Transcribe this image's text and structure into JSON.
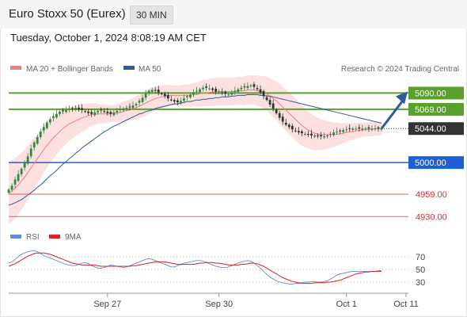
{
  "header": {
    "title": "Euro Stoxx 50 (Eurex)",
    "interval": "30 MIN",
    "datetime": "Tuesday, October 1, 2024 8:08:19 AM CET"
  },
  "legend": {
    "ma20_label": "MA 20 + Bollinger Bands",
    "ma50_label": "MA 50",
    "copyright": "Research © 2024 Trading Central",
    "rsi_label": "RSI",
    "rsi9_label": "9MA"
  },
  "colors": {
    "ma20": "#f08080",
    "ma50": "#2f5a9e",
    "bollinger_fill": "#fde0e0",
    "green_level": "#5aa02c",
    "blue_level": "#1f5fd6",
    "red_level": "#e06060",
    "candle_up": "#2d8a3e",
    "candle_down": "#333333",
    "rsi_line": "#6688dd",
    "rsi_ma": "#dd2222",
    "arrow": "#2f5a9e"
  },
  "chart_data": {
    "type": "candlestick",
    "price_range": [
      4918,
      5112
    ],
    "levels": [
      {
        "value": 5090.0,
        "label": "5090.00",
        "style": "green"
      },
      {
        "value": 5069.0,
        "label": "5069.00",
        "style": "green"
      },
      {
        "value": 5044.0,
        "label": "5044.00",
        "style": "current"
      },
      {
        "value": 5000.0,
        "label": "5000.00",
        "style": "blue"
      },
      {
        "value": 4959.0,
        "label": "4959.00",
        "style": "red"
      },
      {
        "value": 4930.0,
        "label": "4930.00",
        "style": "red"
      }
    ],
    "x_labels": [
      "Sep 27",
      "Sep 30",
      "Oct 1",
      "Oct 11"
    ],
    "x_label_index": [
      31,
      66,
      106,
      118
    ],
    "bar_count": 118,
    "closes": [
      4965,
      4970,
      4978,
      4985,
      4992,
      5000,
      5008,
      5018,
      5026,
      5033,
      5040,
      5046,
      5052,
      5056,
      5060,
      5063,
      5066,
      5067,
      5068,
      5069,
      5070,
      5071,
      5069,
      5068,
      5066,
      5064,
      5063,
      5065,
      5067,
      5068,
      5066,
      5064,
      5063,
      5065,
      5067,
      5069,
      5070,
      5071,
      5072,
      5074,
      5076,
      5080,
      5084,
      5089,
      5093,
      5094,
      5093,
      5091,
      5089,
      5086,
      5083,
      5081,
      5079,
      5078,
      5080,
      5083,
      5086,
      5088,
      5091,
      5093,
      5095,
      5097,
      5097,
      5096,
      5094,
      5092,
      5091,
      5090,
      5089,
      5088,
      5090,
      5093,
      5095,
      5097,
      5098,
      5099,
      5100,
      5098,
      5095,
      5091,
      5086,
      5081,
      5075,
      5070,
      5064,
      5058,
      5053,
      5049,
      5046,
      5043,
      5041,
      5039,
      5038,
      5037,
      5036,
      5035,
      5035,
      5034,
      5034,
      5034,
      5035,
      5037,
      5039,
      5040,
      5041,
      5042,
      5043,
      5044,
      5044,
      5044,
      5044,
      5044,
      5044,
      5044,
      5044,
      5044,
      5044,
      5044
    ],
    "ma20": [
      4960,
      4963,
      4967,
      4971,
      4976,
      4981,
      4987,
      4993,
      4999,
      5005,
      5011,
      5017,
      5022,
      5027,
      5032,
      5036,
      5040,
      5044,
      5047,
      5050,
      5052,
      5054,
      5056,
      5058,
      5059,
      5061,
      5062,
      5063,
      5063,
      5063,
      5063,
      5063,
      5063,
      5064,
      5064,
      5065,
      5066,
      5067,
      5068,
      5069,
      5071,
      5073,
      5075,
      5077,
      5079,
      5081,
      5083,
      5084,
      5085,
      5086,
      5087,
      5087,
      5087,
      5087,
      5087,
      5087,
      5087,
      5087,
      5088,
      5088,
      5089,
      5090,
      5090,
      5091,
      5091,
      5092,
      5092,
      5092,
      5092,
      5092,
      5092,
      5092,
      5093,
      5093,
      5093,
      5094,
      5094,
      5094,
      5093,
      5092,
      5091,
      5089,
      5086,
      5083,
      5080,
      5076,
      5072,
      5068,
      5064,
      5060,
      5056,
      5052,
      5048,
      5045,
      5042,
      5040,
      5038,
      5037,
      5036,
      5036,
      5036,
      5036,
      5036,
      5037,
      5037,
      5038,
      5039,
      5040,
      5040,
      5041,
      5042,
      5042,
      5043,
      5043,
      5043,
      5044,
      5044,
      5044
    ],
    "ma50": [
      4945,
      4946,
      4948,
      4950,
      4952,
      4955,
      4958,
      4961,
      4964,
      4968,
      4971,
      4975,
      4979,
      4983,
      4986,
      4990,
      4994,
      4998,
      5001,
      5005,
      5008,
      5012,
      5015,
      5019,
      5022,
      5025,
      5028,
      5031,
      5034,
      5037,
      5040,
      5042,
      5045,
      5047,
      5049,
      5051,
      5053,
      5055,
      5057,
      5059,
      5061,
      5063,
      5064,
      5066,
      5067,
      5068,
      5070,
      5071,
      5072,
      5073,
      5074,
      5075,
      5076,
      5076,
      5077,
      5078,
      5079,
      5079,
      5080,
      5081,
      5081,
      5082,
      5082,
      5083,
      5083,
      5084,
      5084,
      5085,
      5085,
      5085,
      5086,
      5086,
      5087,
      5087,
      5087,
      5088,
      5088,
      5088,
      5088,
      5087,
      5087,
      5086,
      5086,
      5085,
      5084,
      5083,
      5082,
      5081,
      5080,
      5079,
      5078,
      5077,
      5076,
      5075,
      5074,
      5073,
      5072,
      5071,
      5070,
      5069,
      5068,
      5067,
      5066,
      5065,
      5064,
      5063,
      5062,
      5061,
      5060,
      5059,
      5058,
      5057,
      5056,
      5055,
      5054,
      5053,
      5052,
      5051
    ],
    "bollinger_width": [
      40,
      40,
      39,
      38,
      37,
      36,
      35,
      34,
      33,
      32,
      31,
      30,
      29,
      28,
      27,
      26,
      25,
      24,
      23,
      22,
      21,
      20,
      19,
      18,
      17,
      16,
      15,
      14,
      13,
      12,
      12,
      11,
      11,
      11,
      12,
      12,
      13,
      13,
      14,
      14,
      15,
      15,
      16,
      16,
      16,
      16,
      16,
      15,
      15,
      14,
      14,
      13,
      13,
      13,
      13,
      14,
      14,
      15,
      15,
      16,
      16,
      17,
      17,
      18,
      18,
      18,
      18,
      18,
      18,
      18,
      18,
      18,
      18,
      18,
      19,
      19,
      19,
      19,
      20,
      20,
      21,
      22,
      23,
      24,
      25,
      26,
      26,
      27,
      27,
      27,
      27,
      27,
      26,
      25,
      24,
      23,
      22,
      21,
      20,
      19,
      18,
      17,
      16,
      15,
      14,
      13,
      12,
      11,
      11,
      10,
      10,
      9,
      9,
      9,
      9,
      9,
      9,
      9
    ],
    "rsi": {
      "levels": [
        70,
        50,
        30
      ],
      "range": [
        15,
        85
      ],
      "values": [
        60,
        62,
        66,
        70,
        74,
        76,
        78,
        79,
        80,
        78,
        75,
        72,
        70,
        68,
        66,
        64,
        62,
        60,
        58,
        57,
        56,
        56,
        58,
        60,
        61,
        59,
        56,
        54,
        52,
        52,
        53,
        55,
        57,
        56,
        55,
        54,
        53,
        54,
        56,
        58,
        60,
        62,
        64,
        66,
        67,
        66,
        64,
        62,
        60,
        58,
        56,
        54,
        54,
        56,
        58,
        60,
        61,
        62,
        63,
        64,
        64,
        63,
        61,
        59,
        57,
        55,
        54,
        53,
        53,
        54,
        56,
        58,
        60,
        62,
        63,
        64,
        63,
        60,
        56,
        52,
        47,
        42,
        38,
        35,
        32,
        30,
        29,
        28,
        27,
        27,
        28,
        28,
        29,
        30,
        30,
        31,
        31,
        30,
        30,
        31,
        32,
        35,
        38,
        41,
        43,
        44,
        45,
        46,
        47,
        47,
        47,
        47,
        47,
        47,
        47,
        47,
        48,
        48
      ],
      "ma9": [
        55,
        57,
        59,
        62,
        65,
        68,
        71,
        73,
        75,
        76,
        76,
        76,
        75,
        74,
        72,
        70,
        68,
        66,
        64,
        62,
        60,
        59,
        58,
        57,
        57,
        57,
        57,
        57,
        56,
        55,
        55,
        55,
        55,
        55,
        55,
        55,
        55,
        55,
        55,
        56,
        56,
        57,
        58,
        59,
        60,
        61,
        62,
        62,
        62,
        62,
        61,
        60,
        59,
        58,
        58,
        58,
        58,
        58,
        58,
        59,
        60,
        60,
        61,
        61,
        61,
        60,
        60,
        59,
        58,
        57,
        57,
        57,
        57,
        58,
        58,
        59,
        60,
        60,
        59,
        57,
        55,
        52,
        49,
        46,
        43,
        40,
        37,
        35,
        33,
        31,
        30,
        29,
        28,
        28,
        28,
        28,
        29,
        29,
        29,
        29,
        30,
        30,
        31,
        32,
        33,
        35,
        37,
        39,
        41,
        43,
        44,
        45,
        46,
        46,
        47,
        47,
        47,
        47
      ]
    }
  }
}
